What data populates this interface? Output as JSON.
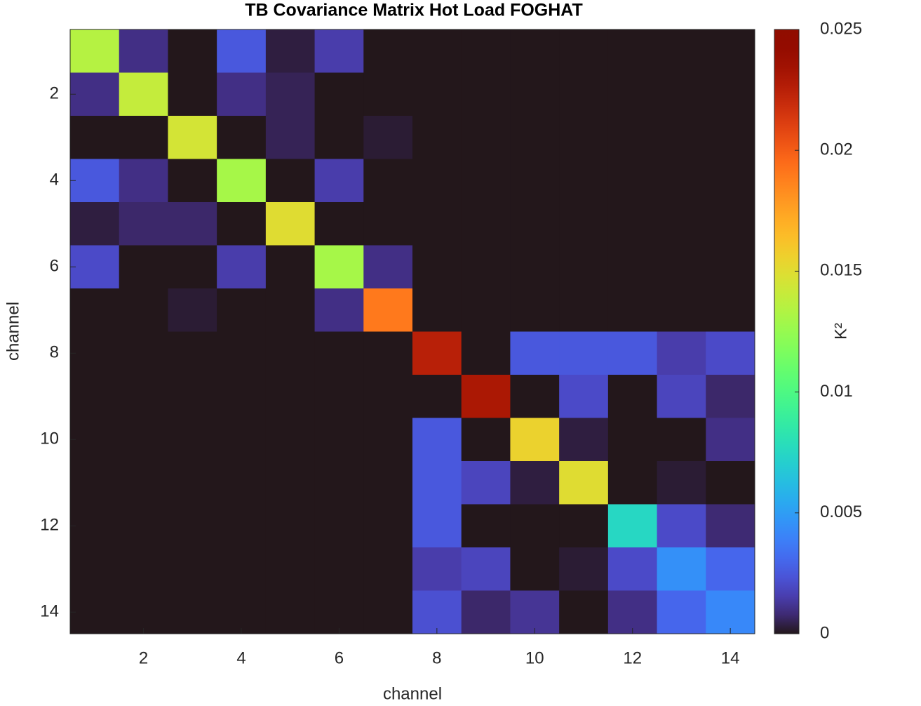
{
  "chart_data": {
    "type": "heatmap",
    "title": "TB Covariance Matrix Hot Load FOGHAT",
    "xlabel": "channel",
    "ylabel": "channel",
    "colorbar_label": "K²",
    "colormap": "turbo",
    "xlim": [
      0.5,
      14.5
    ],
    "ylim": [
      14.5,
      0.5
    ],
    "xticks": [
      2,
      4,
      6,
      8,
      10,
      12,
      14
    ],
    "yticks": [
      2,
      4,
      6,
      8,
      10,
      12,
      14
    ],
    "clim": [
      0,
      0.025
    ],
    "cticks": [
      0,
      0.005,
      0.01,
      0.015,
      0.02,
      0.025
    ],
    "z": [
      [
        0.0135,
        0.001,
        0,
        0.0025,
        0.0003,
        0.0015,
        0,
        0,
        0,
        0,
        0,
        0,
        0,
        0
      ],
      [
        0.001,
        0.014,
        0,
        0.001,
        0.0005,
        0,
        0,
        0,
        0,
        0,
        0,
        0,
        0,
        0
      ],
      [
        0,
        0,
        0.0145,
        0,
        0.0005,
        0,
        0.0002,
        0,
        0,
        0,
        0,
        0,
        0,
        0
      ],
      [
        0.0025,
        0.001,
        0,
        0.013,
        0,
        0.0015,
        0,
        0,
        0,
        0,
        0,
        0,
        0,
        0
      ],
      [
        0.0003,
        0.0007,
        0.0007,
        0,
        0.015,
        0,
        0,
        0,
        0,
        0,
        0,
        0,
        0,
        0
      ],
      [
        0.002,
        0,
        0,
        0.0015,
        0,
        0.013,
        0.001,
        0,
        0,
        0,
        0,
        0,
        0,
        0
      ],
      [
        0,
        0,
        0.0002,
        0,
        0,
        0.001,
        0.019,
        0,
        0,
        0,
        0,
        0,
        0,
        0
      ],
      [
        0,
        0,
        0,
        0,
        0,
        0,
        0,
        0.0225,
        0,
        0.0025,
        0.0025,
        0.0025,
        0.0015,
        0.002
      ],
      [
        0,
        0,
        0,
        0,
        0,
        0,
        0,
        0,
        0.023,
        0,
        0.002,
        0,
        0.0018,
        0.0007
      ],
      [
        0,
        0,
        0,
        0,
        0,
        0,
        0,
        0.0025,
        0,
        0.0155,
        0.0003,
        0,
        0,
        0.001
      ],
      [
        0,
        0,
        0,
        0,
        0,
        0,
        0,
        0.0025,
        0.0018,
        0.0003,
        0.015,
        0,
        0.0002,
        0
      ],
      [
        0,
        0,
        0,
        0,
        0,
        0,
        0,
        0.0025,
        0,
        0,
        0,
        0.0075,
        0.002,
        0.0008
      ],
      [
        0,
        0,
        0,
        0,
        0,
        0,
        0,
        0.0015,
        0.0018,
        0,
        0.0002,
        0.002,
        0.0045,
        0.003
      ],
      [
        0,
        0,
        0,
        0,
        0,
        0,
        0,
        0.0022,
        0.0007,
        0.0012,
        0,
        0.001,
        0.003,
        0.0042
      ]
    ]
  }
}
